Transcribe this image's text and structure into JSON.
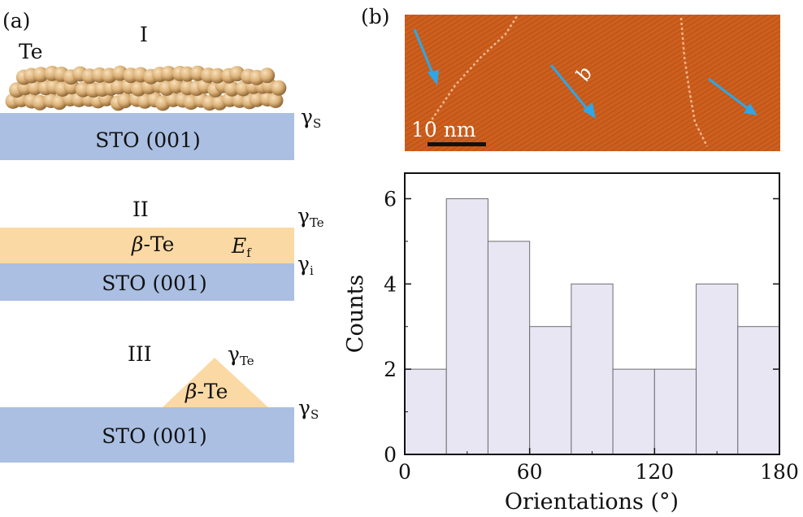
{
  "panel_a": {
    "label": "(a)",
    "diagram_I": {
      "roman": "I",
      "element": "Te",
      "substrate": "STO (001)",
      "gamma_symbol": "γ",
      "gamma_sub": "S"
    },
    "diagram_II": {
      "roman": "II",
      "beta": "β",
      "film": "-Te",
      "energy_symbol": "E",
      "energy_sub": "f",
      "substrate": "STO (001)",
      "gamma_symbol": "γ",
      "gamma_top_sub": "Te",
      "gamma_int_sub": "i"
    },
    "diagram_III": {
      "roman": "III",
      "beta": "β",
      "island": "-Te",
      "substrate": "STO (001)",
      "gamma_symbol": "γ",
      "gamma_top_sub": "Te",
      "gamma_s_sub": "S"
    },
    "colors": {
      "substrate": "#aabfe2",
      "film": "#fbd9a4",
      "sphere_light": "#f8e0bb",
      "sphere_mid": "#dcb279",
      "sphere_dark": "#8e6634"
    }
  },
  "panel_b": {
    "label": "(b)",
    "stm": {
      "scale_bar": "10 nm",
      "axis_label": "b",
      "colors": {
        "base": "#d0621f",
        "arrow": "#2fa6e5"
      }
    },
    "chart_data": {
      "type": "bar",
      "bin_edges": [
        0,
        20,
        40,
        60,
        80,
        100,
        120,
        140,
        160,
        180
      ],
      "categories": [
        "0–20",
        "20–40",
        "40–60",
        "60–80",
        "80–100",
        "100–120",
        "120–140",
        "140–160",
        "160–180"
      ],
      "values": [
        2,
        6,
        5,
        3,
        4,
        2,
        2,
        4,
        3
      ],
      "xlabel": "Orientations (°)",
      "ylabel": "Counts",
      "xlim": [
        0,
        180
      ],
      "ylim": [
        0,
        6.6
      ],
      "xticks": [
        0,
        60,
        120,
        180
      ],
      "yticks": [
        0,
        2,
        4,
        6
      ],
      "bar_color": "#e8e6f3",
      "bar_edge": "#6e6e6e"
    }
  }
}
